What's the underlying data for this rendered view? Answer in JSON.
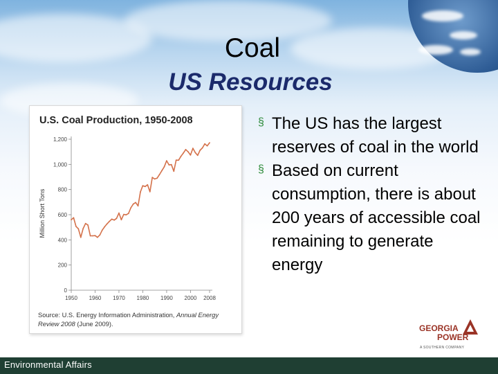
{
  "slide": {
    "title": "Coal",
    "subtitle": "US Resources",
    "footer": "Environmental Affairs"
  },
  "bullets": [
    "The US has the largest reserves of coal in the world",
    "Based on current consumption, there is about 200 years of accessible coal remaining to generate energy"
  ],
  "logo": {
    "line1": "GEORGIA",
    "line2": "POWER",
    "tagline": "A SOUTHERN COMPANY",
    "color": "#9a3326"
  },
  "chart_data": {
    "type": "line",
    "title": "U.S. Coal Production, 1950-2008",
    "ylabel": "Million Short Tons",
    "xlabel": "",
    "xlim": [
      1950,
      2008
    ],
    "ylim": [
      0,
      1200
    ],
    "x_ticks": [
      1950,
      1960,
      1970,
      1980,
      1990,
      2000,
      2008
    ],
    "x_tick_labels": [
      "1950",
      "1960",
      "1970",
      "1980",
      "1990",
      "2000",
      "2008"
    ],
    "y_ticks": [
      0,
      200,
      400,
      600,
      800,
      1000,
      1200
    ],
    "y_tick_labels": [
      "0",
      "200",
      "400",
      "600",
      "800",
      "1,000",
      "1,200"
    ],
    "line_color": "#d4714a",
    "grid": false,
    "source_text": "Source: U.S. Energy Information Administration, ",
    "source_italic": "Annual Energy Review 2008",
    "source_end": " (June 2009).",
    "series": [
      {
        "x": [
          1950,
          1951,
          1952,
          1953,
          1954,
          1955,
          1956,
          1957,
          1958,
          1959,
          1960,
          1961,
          1962,
          1963,
          1964,
          1965,
          1966,
          1967,
          1968,
          1969,
          1970,
          1971,
          1972,
          1973,
          1974,
          1975,
          1976,
          1977,
          1978,
          1979,
          1980,
          1981,
          1982,
          1983,
          1984,
          1985,
          1986,
          1987,
          1988,
          1989,
          1990,
          1991,
          1992,
          1993,
          1994,
          1995,
          1996,
          1997,
          1998,
          1999,
          2000,
          2001,
          2002,
          2003,
          2004,
          2005,
          2006,
          2007,
          2008
        ],
        "y": [
          560,
          576,
          507,
          488,
          420,
          490,
          530,
          518,
          432,
          432,
          434,
          420,
          439,
          477,
          504,
          527,
          547,
          565,
          557,
          571,
          613,
          560,
          602,
          599,
          610,
          655,
          685,
          697,
          670,
          781,
          830,
          824,
          838,
          782,
          896,
          884,
          890,
          919,
          950,
          981,
          1029,
          996,
          998,
          945,
          1034,
          1033,
          1064,
          1090,
          1118,
          1100,
          1074,
          1128,
          1094,
          1072,
          1112,
          1131,
          1163,
          1147,
          1172
        ]
      }
    ]
  }
}
